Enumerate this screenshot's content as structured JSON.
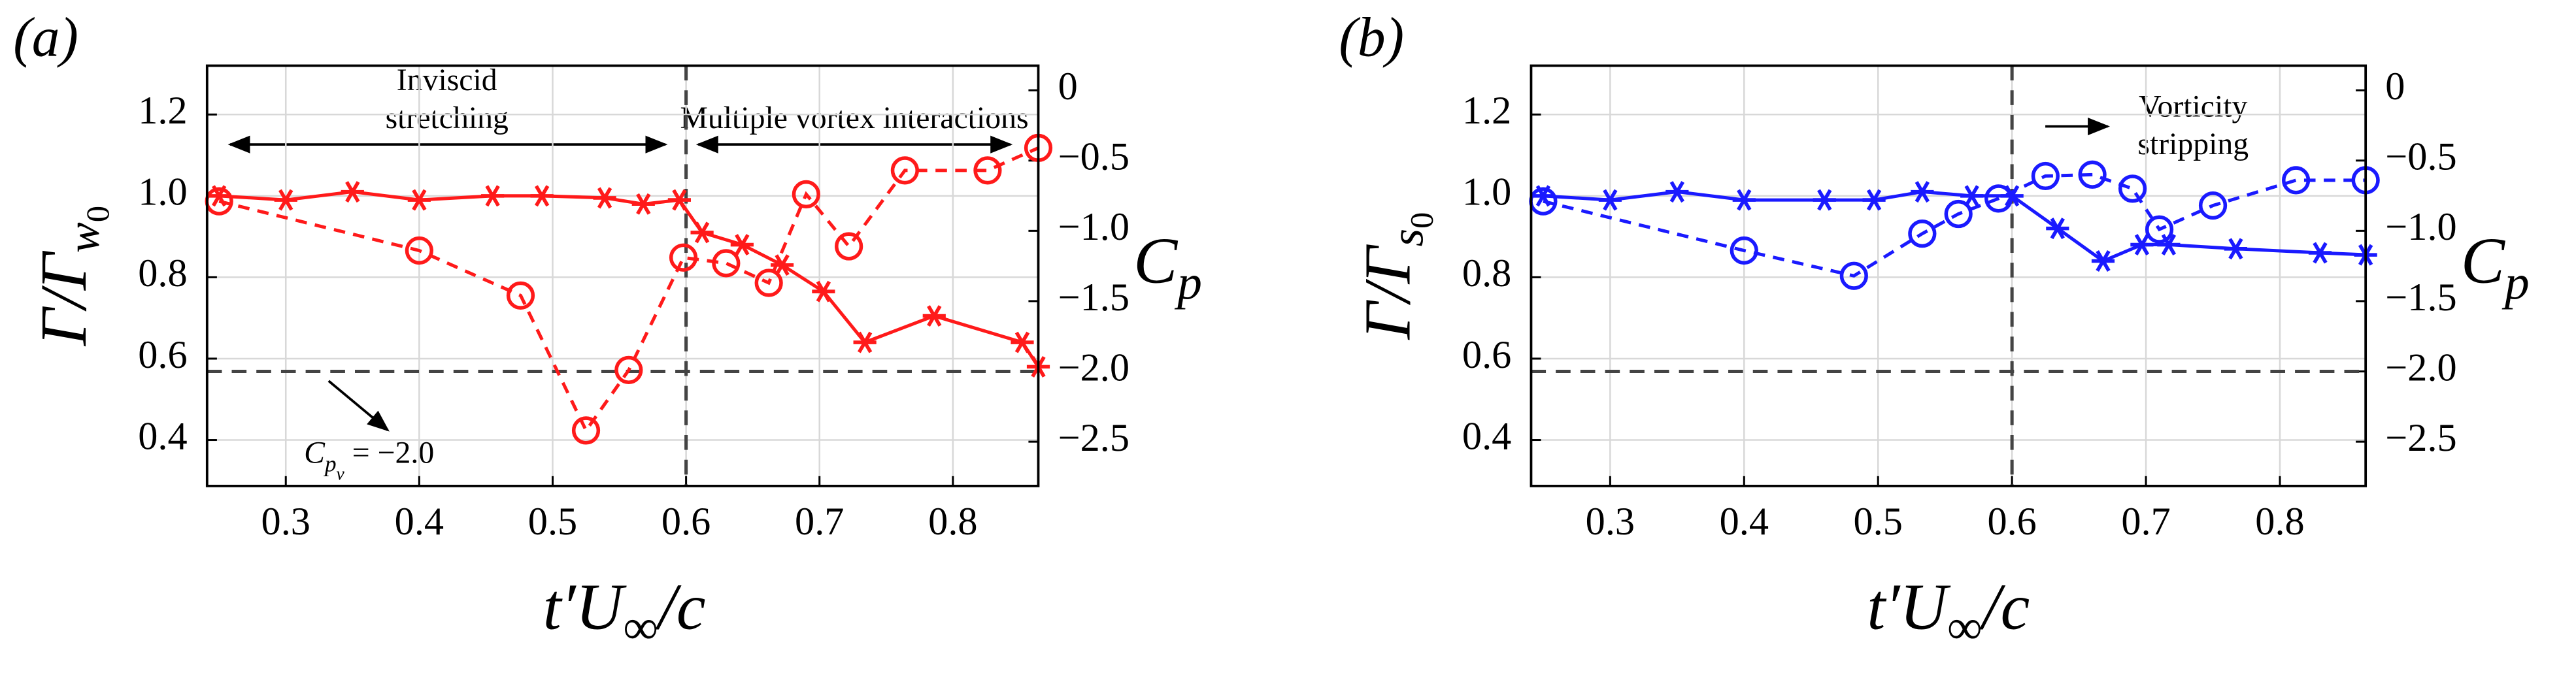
{
  "chart_data": [
    {
      "type": "line",
      "title": "(a)",
      "xlabel": [
        "t′U",
        "∞",
        "/c"
      ],
      "ylabel": [
        "Γ/Γ",
        "w",
        "0"
      ],
      "y2label": [
        "C",
        "p"
      ],
      "xlim": [
        0.241,
        0.864
      ],
      "xticks": [
        0.3,
        0.4,
        0.5,
        0.6,
        0.7,
        0.8
      ],
      "ylim": [
        0.287,
        1.32
      ],
      "yticks": [
        0.4,
        0.6,
        0.8,
        {
          "value": 1.0,
          "label": "1.0"
        },
        1.2
      ],
      "y2lim": [
        -2.815,
        0.175
      ],
      "y2ticks": [
        {
          "value": -2.5,
          "label": "−2.5"
        },
        {
          "value": -2.0,
          "label": "−2.0"
        },
        {
          "value": -1.5,
          "label": "−1.5"
        },
        {
          "value": -1.0,
          "label": "−1.0"
        },
        {
          "value": -0.5,
          "label": "−0.5"
        },
        0
      ],
      "grid": true,
      "vline": 0.6,
      "hline_y2": -2.0,
      "annotations": {
        "left_region": [
          "Inviscid",
          "stretching"
        ],
        "right_region": [
          "Multiple vortex interactions"
        ],
        "threshold": [
          "C",
          "p",
          "v",
          " = −2.0"
        ]
      },
      "series": [
        {
          "color": "#ff1a1a",
          "style": "solid",
          "marker": "star",
          "x": [
            0.25,
            0.3,
            0.35,
            0.4,
            0.455,
            0.492,
            0.539,
            0.568,
            0.595,
            0.612,
            0.642,
            0.672,
            0.703,
            0.734,
            0.786,
            0.852,
            0.864
          ],
          "values": [
            1.0,
            0.99,
            1.01,
            0.99,
            1.0,
            1.0,
            0.995,
            0.98,
            0.99,
            0.91,
            0.88,
            0.83,
            0.765,
            0.64,
            0.705,
            0.64,
            0.58
          ]
        },
        {
          "color": "#ff1a1a",
          "style": "dashed",
          "marker": "circle",
          "axis": "y2",
          "x": [
            0.25,
            0.4,
            0.476,
            0.525,
            0.557,
            0.598,
            0.63,
            0.662,
            0.69,
            0.722,
            0.764,
            0.826,
            0.864
          ],
          "values": [
            -0.79,
            -1.14,
            -1.46,
            -2.42,
            -1.99,
            -1.19,
            -1.23,
            -1.37,
            -0.74,
            -1.11,
            -0.57,
            -0.57,
            -0.41
          ]
        }
      ]
    },
    {
      "type": "line",
      "title": "(b)",
      "xlabel": [
        "t′U",
        "∞",
        "/c"
      ],
      "ylabel": [
        "Γ/Γ",
        "s",
        "0"
      ],
      "y2label": [
        "C",
        "p"
      ],
      "xlim": [
        0.241,
        0.864
      ],
      "xticks": [
        0.3,
        0.4,
        0.5,
        0.6,
        0.7,
        0.8
      ],
      "ylim": [
        0.287,
        1.32
      ],
      "yticks": [
        0.4,
        0.6,
        0.8,
        {
          "value": 1.0,
          "label": "1.0"
        },
        1.2
      ],
      "y2lim": [
        -2.815,
        0.175
      ],
      "y2ticks": [
        {
          "value": -2.5,
          "label": "−2.5"
        },
        {
          "value": -2.0,
          "label": "−2.0"
        },
        {
          "value": -1.5,
          "label": "−1.5"
        },
        {
          "value": -1.0,
          "label": "−1.0"
        },
        {
          "value": -0.5,
          "label": "−0.5"
        },
        0
      ],
      "grid": true,
      "vline": 0.6,
      "hline_y2": -2.0,
      "annotations": {
        "right_region": [
          "Vorticity",
          "stripping"
        ]
      },
      "series": [
        {
          "color": "#1a1aff",
          "style": "solid",
          "marker": "star",
          "x": [
            0.25,
            0.3,
            0.35,
            0.4,
            0.46,
            0.497,
            0.533,
            0.57,
            0.6,
            0.634,
            0.668,
            0.697,
            0.717,
            0.767,
            0.83,
            0.864
          ],
          "values": [
            1.0,
            0.99,
            1.01,
            0.99,
            0.99,
            0.99,
            1.01,
            1.0,
            1.0,
            0.92,
            0.84,
            0.88,
            0.88,
            0.87,
            0.86,
            0.855
          ]
        },
        {
          "color": "#1a1aff",
          "style": "dashed",
          "marker": "circle",
          "axis": "y2",
          "x": [
            0.25,
            0.4,
            0.482,
            0.533,
            0.56,
            0.59,
            0.625,
            0.66,
            0.69,
            0.71,
            0.75,
            0.812,
            0.864
          ],
          "values": [
            -0.79,
            -1.14,
            -1.32,
            -1.02,
            -0.88,
            -0.77,
            -0.61,
            -0.6,
            -0.7,
            -0.99,
            -0.82,
            -0.64,
            -0.64
          ]
        }
      ]
    }
  ]
}
